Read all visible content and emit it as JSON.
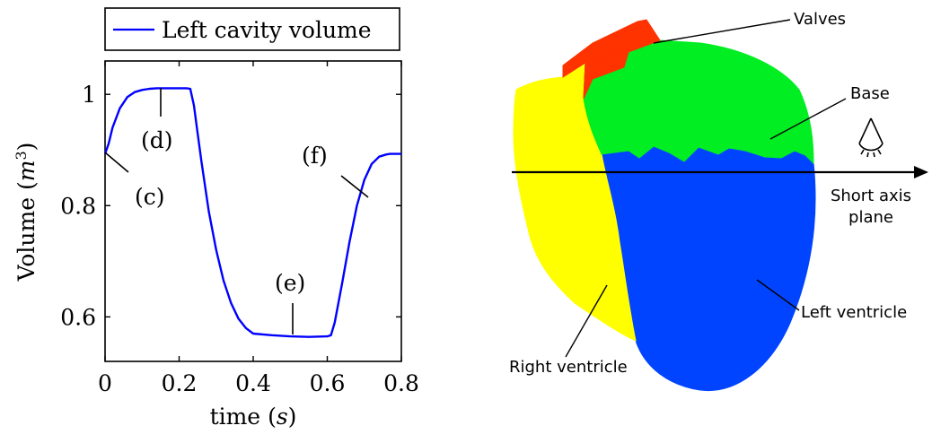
{
  "chart_data": {
    "type": "line",
    "legend": {
      "placement": "top",
      "entries": [
        "Left cavity volume"
      ]
    },
    "xlabel": "time",
    "xlabel_unit": "s",
    "ylabel": "Volume",
    "ylabel_unit": "m",
    "ylabel_unit_exponent": "3",
    "xlim": [
      0,
      0.8
    ],
    "ylim": [
      0.52,
      1.06
    ],
    "x_ticks": [
      "0",
      "0.2",
      "0.4",
      "0.6",
      "0.8"
    ],
    "y_ticks": [
      "0.6",
      "0.8",
      "1"
    ],
    "grid": false,
    "series": [
      {
        "name": "Left cavity volume",
        "color": "#0000ff",
        "x": [
          0,
          0.01,
          0.02,
          0.04,
          0.06,
          0.08,
          0.1,
          0.12,
          0.14,
          0.16,
          0.18,
          0.2,
          0.22,
          0.23,
          0.24,
          0.25,
          0.26,
          0.28,
          0.3,
          0.32,
          0.34,
          0.36,
          0.38,
          0.4,
          0.45,
          0.5,
          0.55,
          0.6,
          0.61,
          0.62,
          0.64,
          0.66,
          0.68,
          0.7,
          0.72,
          0.74,
          0.76,
          0.77,
          0.78,
          0.8
        ],
        "y": [
          0.893,
          0.912,
          0.94,
          0.975,
          0.995,
          1.004,
          1.008,
          1.01,
          1.011,
          1.011,
          1.011,
          1.011,
          1.011,
          1.01,
          0.98,
          0.93,
          0.88,
          0.79,
          0.72,
          0.665,
          0.625,
          0.597,
          0.58,
          0.57,
          0.567,
          0.565,
          0.564,
          0.565,
          0.567,
          0.59,
          0.66,
          0.735,
          0.8,
          0.846,
          0.875,
          0.888,
          0.892,
          0.893,
          0.893,
          0.893
        ]
      }
    ],
    "annotations": [
      {
        "label": "(c)",
        "x": 0.0
      },
      {
        "label": "(d)",
        "x": 0.15
      },
      {
        "label": "(e)",
        "x": 0.51
      },
      {
        "label": "(f)",
        "x": 0.7
      }
    ]
  },
  "figure_labels": {
    "valves": "Valves",
    "base": "Base",
    "short_axis_line1": "Short axis",
    "short_axis_line2": "plane",
    "left_ventricle": "Left ventricle",
    "right_ventricle": "Right ventricle"
  },
  "colors": {
    "valves": "#ff3300",
    "base": "#00ee22",
    "left_ventricle": "#0044ff",
    "right_ventricle": "#ffff00"
  }
}
